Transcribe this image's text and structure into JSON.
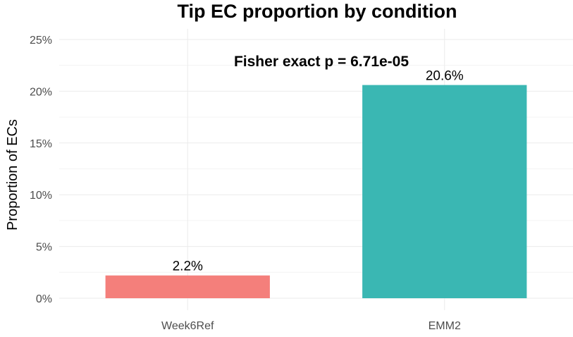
{
  "chart_data": {
    "type": "bar",
    "title": "Tip EC proportion by condition",
    "annotation": "Fisher exact p = 6.71e-05",
    "xlabel": "",
    "ylabel": "Proportion of ECs",
    "categories": [
      "Week6Ref",
      "EMM2"
    ],
    "values": [
      0.022,
      0.206
    ],
    "data_labels": [
      "2.2%",
      "20.6%"
    ],
    "colors": [
      "#F47F7B",
      "#3AB7B3"
    ],
    "ylim": [
      0,
      0.25
    ],
    "yticks": [
      0,
      0.05,
      0.1,
      0.15,
      0.2,
      0.25
    ],
    "ytick_labels": [
      "0%",
      "5%",
      "10%",
      "15%",
      "20%",
      "25%"
    ],
    "grid": true,
    "legend": "none"
  }
}
